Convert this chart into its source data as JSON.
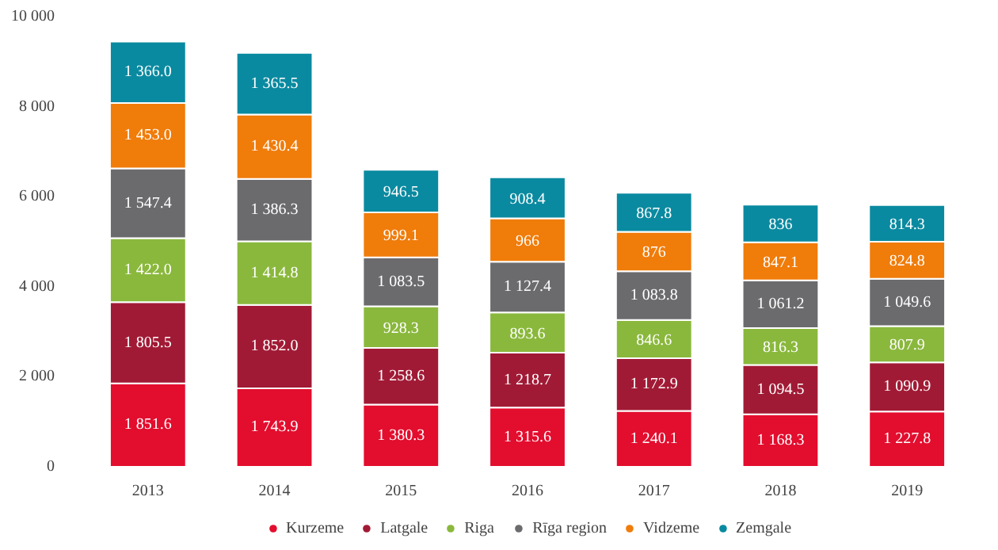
{
  "chart_data": {
    "type": "bar",
    "stacked": true,
    "categories": [
      "2013",
      "2014",
      "2015",
      "2016",
      "2017",
      "2018",
      "2019"
    ],
    "ylim": [
      0,
      10000
    ],
    "yticks": [
      0,
      {
        "value": 2000,
        "label": "2 000"
      },
      {
        "value": 4000,
        "label": "4 000"
      },
      {
        "value": 6000,
        "label": "6 000"
      },
      {
        "value": 8000,
        "label": "8 000"
      },
      {
        "value": 10000,
        "label": "10 000"
      }
    ],
    "grid": false,
    "legend": "bottom",
    "series": [
      {
        "name": "Kurzeme",
        "color": "#e30d2e",
        "values": [
          1851.6,
          1743.9,
          1380.3,
          1315.6,
          1240.1,
          1168.3,
          1227.8
        ],
        "value_labels": [
          "1 851.6",
          "1 743.9",
          "1 380.3",
          "1 315.6",
          "1 240.1",
          "1 168.3",
          "1 227.8"
        ]
      },
      {
        "name": "Latgale",
        "color": "#a11a35",
        "values": [
          1805.5,
          1852.0,
          1258.6,
          1218.7,
          1172.9,
          1094.5,
          1090.9
        ],
        "value_labels": [
          "1 805.5",
          "1 852.0",
          "1 258.6",
          "1 218.7",
          "1 172.9",
          "1 094.5",
          "1 090.9"
        ]
      },
      {
        "name": "Riga",
        "color": "#8ab83c",
        "values": [
          1422.0,
          1414.8,
          928.3,
          893.6,
          846.6,
          816.3,
          807.9
        ],
        "value_labels": [
          "1 422.0",
          "1 414.8",
          "928.3",
          "893.6",
          "846.6",
          "816.3",
          "807.9"
        ]
      },
      {
        "name": "Rīga region",
        "color": "#6b6b6e",
        "values": [
          1547.4,
          1386.3,
          1083.5,
          1127.4,
          1083.8,
          1061.2,
          1049.6
        ],
        "value_labels": [
          "1 547.4",
          "1 386.3",
          "1 083.5",
          "1 127.4",
          "1 083.8",
          "1 061.2",
          "1 049.6"
        ]
      },
      {
        "name": "Vidzeme",
        "color": "#f07c0a",
        "values": [
          1453.0,
          1430.4,
          999.1,
          966,
          876,
          847.1,
          824.8
        ],
        "value_labels": [
          "1 453.0",
          "1 430.4",
          "999.1",
          "966",
          "876",
          "847.1",
          "824.8"
        ]
      },
      {
        "name": "Zemgale",
        "color": "#0a8aa0",
        "values": [
          1366.0,
          1365.5,
          946.5,
          908.4,
          867.8,
          836,
          814.3
        ],
        "value_labels": [
          "1 366.0",
          "1 365.5",
          "946.5",
          "908.4",
          "867.8",
          "836",
          "814.3"
        ]
      }
    ]
  }
}
